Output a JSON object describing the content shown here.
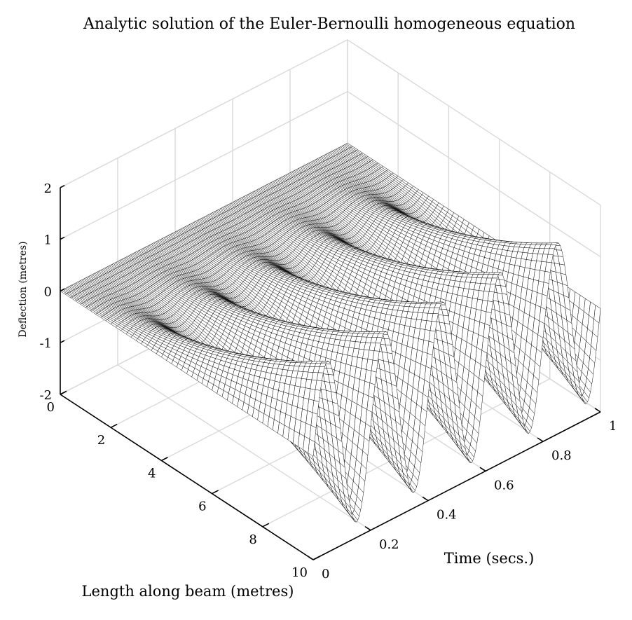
{
  "chart_data": {
    "type": "surface",
    "title": "Analytic solution of the Euler-Bernoulli homogeneous equation",
    "xlabel": "Length along beam (metres)",
    "ylabel": "Time (secs.)",
    "zlabel": "Deflection (metres)",
    "xlim": [
      0,
      10
    ],
    "ylim": [
      0,
      1
    ],
    "zlim": [
      -2,
      2
    ],
    "x_ticks": [
      "0",
      "2",
      "4",
      "6",
      "8",
      "10"
    ],
    "y_ticks": [
      "0",
      "0.2",
      "0.4",
      "0.6",
      "0.8",
      "1"
    ],
    "z_ticks": [
      "2",
      "1",
      "0",
      "-1",
      "-2"
    ],
    "grid": true,
    "surface": {
      "function": "z = A * (x / 10)^2 * sin(2*pi*f*t)",
      "amplitude": 1.7,
      "cycles_over_time_range": 5,
      "x_samples": 51,
      "t_samples": 201
    },
    "colors": {
      "face": "#ffffff",
      "edge": "#000000",
      "grid": "#d9d9d9"
    }
  }
}
